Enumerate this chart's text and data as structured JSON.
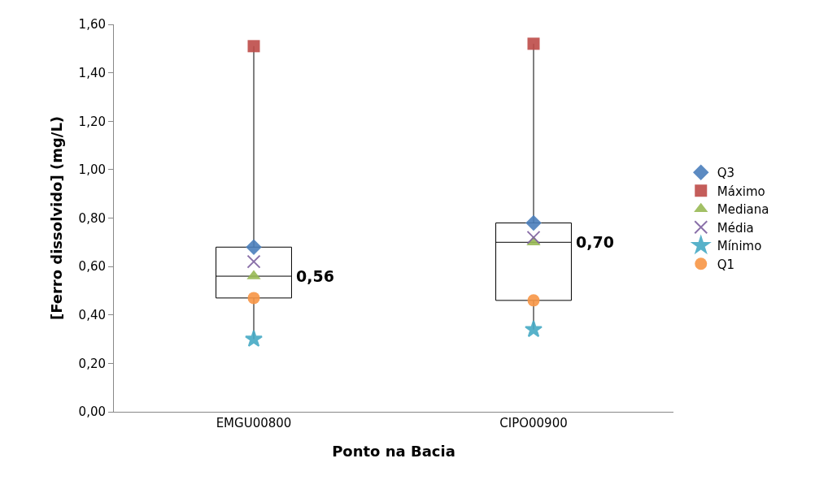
{
  "chart_data": {
    "type": "box",
    "xlabel": "Ponto na Bacia",
    "ylabel": "[Ferro dissolvido] (mg/L)",
    "categories": [
      "EMGU00800",
      "CIPO00900"
    ],
    "boxes": [
      {
        "low": 0.3,
        "q1": 0.47,
        "median": 0.56,
        "q3": 0.68,
        "high": 1.51
      },
      {
        "low": 0.34,
        "q1": 0.46,
        "median": 0.7,
        "q3": 0.78,
        "high": 1.52
      }
    ],
    "series": [
      {
        "name": "Q3",
        "type": "scatter",
        "marker": "diamond",
        "color": "#4a7ebb",
        "values": [
          0.68,
          0.78
        ]
      },
      {
        "name": "Máximo",
        "type": "scatter",
        "marker": "square",
        "color": "#be4b48",
        "values": [
          1.51,
          1.52
        ]
      },
      {
        "name": "Mediana",
        "type": "scatter",
        "marker": "triangle",
        "color": "#98b954",
        "values": [
          0.56,
          0.7
        ]
      },
      {
        "name": "Média",
        "type": "scatter",
        "marker": "cross",
        "color": "#7d60a0",
        "values": [
          0.62,
          0.72
        ]
      },
      {
        "name": "Mínimo",
        "type": "scatter",
        "marker": "star",
        "color": "#46aac5",
        "values": [
          0.3,
          0.34
        ]
      },
      {
        "name": "Q1",
        "type": "scatter",
        "marker": "circle",
        "color": "#f79646",
        "values": [
          0.47,
          0.46
        ]
      }
    ],
    "ylim": [
      0,
      1.6
    ],
    "yticks": [
      {
        "value": 0,
        "label": "0,00"
      },
      {
        "value": 0.2,
        "label": "0,20"
      },
      {
        "value": 0.4,
        "label": "0,40"
      },
      {
        "value": 0.6,
        "label": "0,60"
      },
      {
        "value": 0.8,
        "label": "0,80"
      },
      {
        "value": 1.0,
        "label": "1,00"
      },
      {
        "value": 1.2,
        "label": "1,20"
      },
      {
        "value": 1.4,
        "label": "1,40"
      },
      {
        "value": 1.6,
        "label": "1,60"
      }
    ],
    "annotations": [
      {
        "text": "0,56",
        "x": "EMGU00800",
        "y": 0.56
      },
      {
        "text": "0,70",
        "x": "CIPO00900",
        "y": 0.7
      }
    ],
    "grid": false,
    "legend": "right"
  }
}
